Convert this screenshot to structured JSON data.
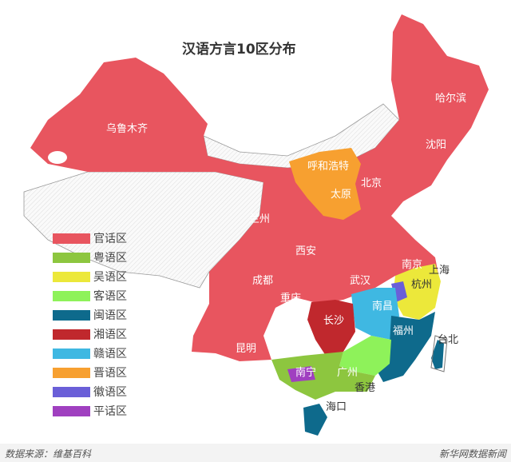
{
  "title": "汉语方言10区分布",
  "cities": [
    "乌鲁木齐",
    "哈尔滨",
    "沈阳",
    "呼和浩特",
    "北京",
    "太原",
    "兰州",
    "西安",
    "南京",
    "上海",
    "杭州",
    "成都",
    "武汉",
    "重庆",
    "南昌",
    "长沙",
    "福州",
    "台北",
    "昆明",
    "南宁",
    "广州",
    "香港",
    "海口"
  ],
  "legend": [
    {
      "label": "官话区",
      "color": "#e8555f"
    },
    {
      "label": "粤语区",
      "color": "#8dc63f"
    },
    {
      "label": "吴语区",
      "color": "#ece83a"
    },
    {
      "label": "客语区",
      "color": "#8ef25a"
    },
    {
      "label": "闽语区",
      "color": "#0e6a8c"
    },
    {
      "label": "湘语区",
      "color": "#c0282d"
    },
    {
      "label": "赣语区",
      "color": "#3fb8e2"
    },
    {
      "label": "晋语区",
      "color": "#f7a030"
    },
    {
      "label": "徽语区",
      "color": "#6a5fd8"
    },
    {
      "label": "平话区",
      "color": "#a040c0"
    }
  ],
  "footer": {
    "source": "数据来源：维基百科",
    "brand": "新华网数据新闻"
  }
}
